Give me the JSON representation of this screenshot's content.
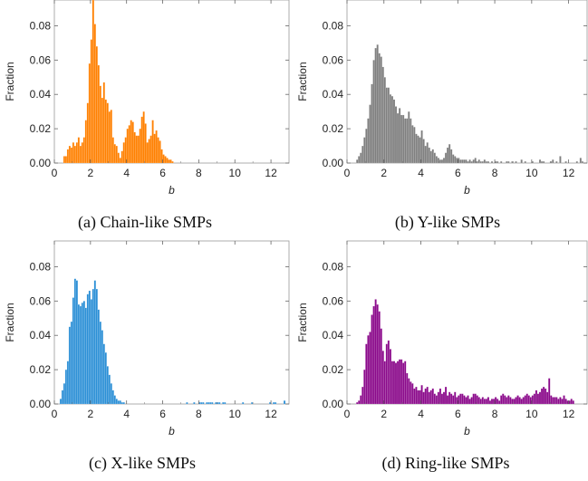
{
  "chart_data": [
    {
      "type": "bar",
      "caption": "(a) Chain-like SMPs",
      "color": "#FF8000",
      "xlabel": "b",
      "ylabel": "Fraction",
      "xlim": [
        0,
        13
      ],
      "ylim": [
        0,
        0.095
      ],
      "xticks": [
        0,
        2,
        4,
        6,
        8,
        10,
        12
      ],
      "yticks": [
        0.0,
        0.02,
        0.04,
        0.06,
        0.08
      ],
      "ytick_labels": [
        "0.00",
        "0.02",
        "0.04",
        "0.06",
        "0.08"
      ],
      "bin_start": 0.5,
      "bin_width": 0.1,
      "values": [
        0.004,
        0.004,
        0.008,
        0.01,
        0.009,
        0.012,
        0.01,
        0.012,
        0.015,
        0.01,
        0.012,
        0.015,
        0.025,
        0.035,
        0.058,
        0.072,
        0.095,
        0.081,
        0.068,
        0.057,
        0.045,
        0.038,
        0.047,
        0.037,
        0.035,
        0.03,
        0.031,
        0.015,
        0.011,
        0.01,
        0.006,
        0.003,
        0.007,
        0.012,
        0.015,
        0.02,
        0.022,
        0.025,
        0.024,
        0.018,
        0.016,
        0.016,
        0.02,
        0.027,
        0.03,
        0.023,
        0.012,
        0.014,
        0.016,
        0.025,
        0.017,
        0.019,
        0.015,
        0.013,
        0.008,
        0.005,
        0.004,
        0.003,
        0.002,
        0.002,
        0.001
      ]
    },
    {
      "type": "bar",
      "caption": "(b) Y-like SMPs",
      "color": "#7f7f7f",
      "xlabel": "b",
      "ylabel": "Fraction",
      "xlim": [
        0,
        13
      ],
      "ylim": [
        0,
        0.095
      ],
      "xticks": [
        0,
        2,
        4,
        6,
        8,
        10,
        12
      ],
      "yticks": [
        0.0,
        0.02,
        0.04,
        0.06,
        0.08
      ],
      "ytick_labels": [
        "0.00",
        "0.02",
        "0.04",
        "0.06",
        "0.08"
      ],
      "bin_start": 0.5,
      "bin_width": 0.1,
      "values": [
        0.002,
        0.004,
        0.006,
        0.01,
        0.015,
        0.02,
        0.026,
        0.034,
        0.046,
        0.06,
        0.067,
        0.069,
        0.064,
        0.062,
        0.056,
        0.05,
        0.044,
        0.044,
        0.04,
        0.039,
        0.037,
        0.033,
        0.029,
        0.032,
        0.028,
        0.028,
        0.026,
        0.026,
        0.03,
        0.026,
        0.022,
        0.021,
        0.017,
        0.016,
        0.015,
        0.019,
        0.014,
        0.01,
        0.012,
        0.009,
        0.007,
        0.008,
        0.006,
        0.004,
        0.003,
        0.002,
        0.002,
        0.003,
        0.006,
        0.009,
        0.011,
        0.008,
        0.005,
        0.004,
        0.003,
        0.003,
        0.002,
        0.002,
        0.002,
        0.002,
        0.001,
        0.002,
        0.001,
        0.002,
        0.003,
        0.001,
        0.002,
        0.001,
        0.001,
        0.002,
        0.001,
        0.001,
        0.0,
        0.001,
        0.0,
        0.001,
        0.001,
        0.0,
        0.001,
        0.0,
        0.0,
        0.001,
        0.001,
        0.0,
        0.001,
        0.0,
        0.001,
        0.0,
        0.0,
        0.002,
        0.0,
        0.001,
        0.0,
        0.0,
        0.0,
        0.001,
        0.0,
        0.0,
        0.0,
        0.002,
        0.001,
        0.001,
        0.0,
        0.0,
        0.0,
        0.001,
        0.002,
        0.0,
        0.001,
        0.0,
        0.004,
        0.0,
        0.0,
        0.001,
        0.0,
        0.0,
        0.0,
        0.0,
        0.0,
        0.001,
        0.0,
        0.003,
        0.001,
        0.0
      ]
    },
    {
      "type": "bar",
      "caption": "(c) X-like SMPs",
      "color": "#2B8FD6",
      "xlabel": "b",
      "ylabel": "Fraction",
      "xlim": [
        0,
        13
      ],
      "ylim": [
        0,
        0.095
      ],
      "xticks": [
        0,
        2,
        4,
        6,
        8,
        10,
        12
      ],
      "yticks": [
        0.0,
        0.02,
        0.04,
        0.06,
        0.08
      ],
      "ytick_labels": [
        "0.00",
        "0.02",
        "0.04",
        "0.06",
        "0.08"
      ],
      "bin_start": 0.3,
      "bin_width": 0.1,
      "values": [
        0.003,
        0.008,
        0.012,
        0.02,
        0.025,
        0.045,
        0.048,
        0.062,
        0.073,
        0.072,
        0.058,
        0.057,
        0.059,
        0.06,
        0.056,
        0.064,
        0.066,
        0.061,
        0.067,
        0.072,
        0.067,
        0.055,
        0.048,
        0.043,
        0.035,
        0.03,
        0.022,
        0.017,
        0.012,
        0.008,
        0.005,
        0.003,
        0.002,
        0.002,
        0.001,
        0.001,
        0.0,
        0.0,
        0.0,
        0.0,
        0.0,
        0.0,
        0.0,
        0.0,
        0.0,
        0.0,
        0.0,
        0.0,
        0.0,
        0.0,
        0.0,
        0.0,
        0.0,
        0.0,
        0.0,
        0.0,
        0.0,
        0.0,
        0.0,
        0.0,
        0.0,
        0.0,
        0.0,
        0.0,
        0.0,
        0.0,
        0.0,
        0.0,
        0.0,
        0.0,
        0.001,
        0.0,
        0.0,
        0.0,
        0.001,
        0.0,
        0.0,
        0.001,
        0.001,
        0.001,
        0.0,
        0.001,
        0.001,
        0.001,
        0.001,
        0.0,
        0.001,
        0.001,
        0.001,
        0.0,
        0.001,
        0.001,
        0.0,
        0.0,
        0.0,
        0.0,
        0.0,
        0.0,
        0.0,
        0.0,
        0.0,
        0.001,
        0.0,
        0.0,
        0.0,
        0.0,
        0.001,
        0.0,
        0.0,
        0.0,
        0.0,
        0.0,
        0.0,
        0.0,
        0.0,
        0.0,
        0.001,
        0.0,
        0.001,
        0.001,
        0.0,
        0.0,
        0.0,
        0.0,
        0.002
      ]
    },
    {
      "type": "bar",
      "caption": "(d) Ring-like SMPs",
      "color": "#8B0A8B",
      "xlabel": "b",
      "ylabel": "Fraction",
      "xlim": [
        0,
        13
      ],
      "ylim": [
        0,
        0.095
      ],
      "xticks": [
        0,
        2,
        4,
        6,
        8,
        10,
        12
      ],
      "yticks": [
        0.0,
        0.02,
        0.04,
        0.06,
        0.08
      ],
      "ytick_labels": [
        "0.00",
        "0.02",
        "0.04",
        "0.06",
        "0.08"
      ],
      "bin_start": 0.5,
      "bin_width": 0.1,
      "values": [
        0.001,
        0.002,
        0.005,
        0.01,
        0.02,
        0.035,
        0.04,
        0.042,
        0.052,
        0.057,
        0.061,
        0.058,
        0.054,
        0.044,
        0.031,
        0.025,
        0.035,
        0.037,
        0.032,
        0.025,
        0.025,
        0.024,
        0.025,
        0.026,
        0.026,
        0.024,
        0.025,
        0.018,
        0.015,
        0.013,
        0.012,
        0.009,
        0.01,
        0.008,
        0.008,
        0.011,
        0.007,
        0.009,
        0.01,
        0.007,
        0.008,
        0.009,
        0.006,
        0.005,
        0.007,
        0.009,
        0.006,
        0.007,
        0.01,
        0.005,
        0.007,
        0.006,
        0.005,
        0.007,
        0.004,
        0.005,
        0.006,
        0.006,
        0.005,
        0.004,
        0.005,
        0.003,
        0.004,
        0.006,
        0.006,
        0.005,
        0.004,
        0.003,
        0.004,
        0.003,
        0.003,
        0.004,
        0.002,
        0.003,
        0.003,
        0.004,
        0.003,
        0.002,
        0.005,
        0.006,
        0.005,
        0.004,
        0.005,
        0.004,
        0.003,
        0.003,
        0.004,
        0.005,
        0.004,
        0.003,
        0.004,
        0.005,
        0.006,
        0.005,
        0.004,
        0.005,
        0.006,
        0.008,
        0.006,
        0.007,
        0.009,
        0.01,
        0.009,
        0.007,
        0.015,
        0.005,
        0.004,
        0.004,
        0.004,
        0.003,
        0.004,
        0.003,
        0.005,
        0.003,
        0.002,
        0.002,
        0.003,
        0.002
      ]
    }
  ]
}
